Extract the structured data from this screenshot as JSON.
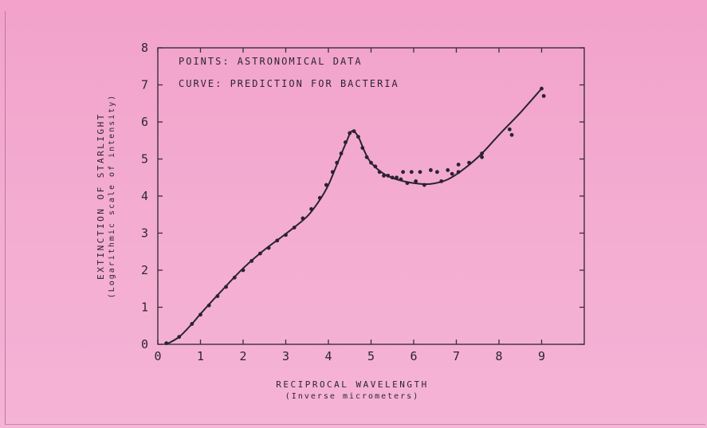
{
  "chart_data": {
    "type": "scatter",
    "annotations": [
      "POINTS: ASTRONOMICAL DATA",
      "CURVE: PREDICTION FOR BACTERIA"
    ],
    "xlabel": "RECIPROCAL WAVELENGTH",
    "xlabel_sub": "(Inverse micrometers)",
    "ylabel": "EXTINCTION OF STARLIGHT",
    "ylabel_sub": "(Logarithmic scale of intensity)",
    "xlim": [
      0,
      10
    ],
    "ylim": [
      0,
      8
    ],
    "xticks": [
      0,
      1,
      2,
      3,
      4,
      5,
      6,
      7,
      8,
      9
    ],
    "yticks": [
      0,
      1,
      2,
      3,
      4,
      5,
      6,
      7,
      8
    ],
    "grid": false,
    "series": [
      {
        "type": "scatter",
        "points": [
          [
            0.2,
            0.03
          ],
          [
            0.5,
            0.2
          ],
          [
            0.8,
            0.55
          ],
          [
            1.0,
            0.8
          ],
          [
            1.2,
            1.05
          ],
          [
            1.4,
            1.3
          ],
          [
            1.6,
            1.55
          ],
          [
            1.8,
            1.8
          ],
          [
            2.0,
            2.0
          ],
          [
            2.2,
            2.25
          ],
          [
            2.4,
            2.45
          ],
          [
            2.6,
            2.6
          ],
          [
            2.8,
            2.8
          ],
          [
            3.0,
            2.95
          ],
          [
            3.2,
            3.15
          ],
          [
            3.4,
            3.4
          ],
          [
            3.6,
            3.65
          ],
          [
            3.8,
            3.95
          ],
          [
            3.95,
            4.3
          ],
          [
            4.1,
            4.65
          ],
          [
            4.2,
            4.9
          ],
          [
            4.3,
            5.15
          ],
          [
            4.4,
            5.45
          ],
          [
            4.5,
            5.7
          ],
          [
            4.6,
            5.75
          ],
          [
            4.7,
            5.6
          ],
          [
            4.8,
            5.3
          ],
          [
            4.9,
            5.05
          ],
          [
            5.0,
            4.9
          ],
          [
            5.1,
            4.8
          ],
          [
            5.2,
            4.65
          ],
          [
            5.3,
            4.55
          ],
          [
            5.4,
            4.55
          ],
          [
            5.5,
            4.5
          ],
          [
            5.6,
            4.5
          ],
          [
            5.7,
            4.45
          ],
          [
            5.75,
            4.65
          ],
          [
            5.85,
            4.35
          ],
          [
            5.95,
            4.65
          ],
          [
            6.05,
            4.4
          ],
          [
            6.15,
            4.65
          ],
          [
            6.25,
            4.3
          ],
          [
            6.4,
            4.7
          ],
          [
            6.55,
            4.65
          ],
          [
            6.65,
            4.4
          ],
          [
            6.8,
            4.7
          ],
          [
            6.9,
            4.6
          ],
          [
            7.05,
            4.65
          ],
          [
            7.05,
            4.85
          ],
          [
            7.3,
            4.9
          ],
          [
            7.6,
            5.15
          ],
          [
            7.6,
            5.05
          ],
          [
            8.25,
            5.8
          ],
          [
            8.3,
            5.65
          ],
          [
            9.0,
            6.9
          ],
          [
            9.05,
            6.7
          ]
        ]
      },
      {
        "type": "line",
        "points": [
          [
            0.2,
            0.0
          ],
          [
            0.5,
            0.2
          ],
          [
            0.8,
            0.55
          ],
          [
            1.0,
            0.82
          ],
          [
            1.5,
            1.45
          ],
          [
            2.0,
            2.05
          ],
          [
            2.5,
            2.55
          ],
          [
            3.0,
            2.98
          ],
          [
            3.5,
            3.45
          ],
          [
            3.8,
            3.9
          ],
          [
            4.0,
            4.3
          ],
          [
            4.2,
            4.85
          ],
          [
            4.4,
            5.4
          ],
          [
            4.55,
            5.75
          ],
          [
            4.7,
            5.6
          ],
          [
            4.85,
            5.2
          ],
          [
            5.0,
            4.9
          ],
          [
            5.3,
            4.6
          ],
          [
            5.6,
            4.45
          ],
          [
            6.0,
            4.35
          ],
          [
            6.4,
            4.33
          ],
          [
            6.8,
            4.45
          ],
          [
            7.2,
            4.75
          ],
          [
            7.6,
            5.15
          ],
          [
            8.0,
            5.65
          ],
          [
            8.5,
            6.25
          ],
          [
            9.0,
            6.9
          ]
        ]
      }
    ]
  },
  "colors": {
    "background": "#f3a8cf",
    "ink": "#2d2530"
  }
}
